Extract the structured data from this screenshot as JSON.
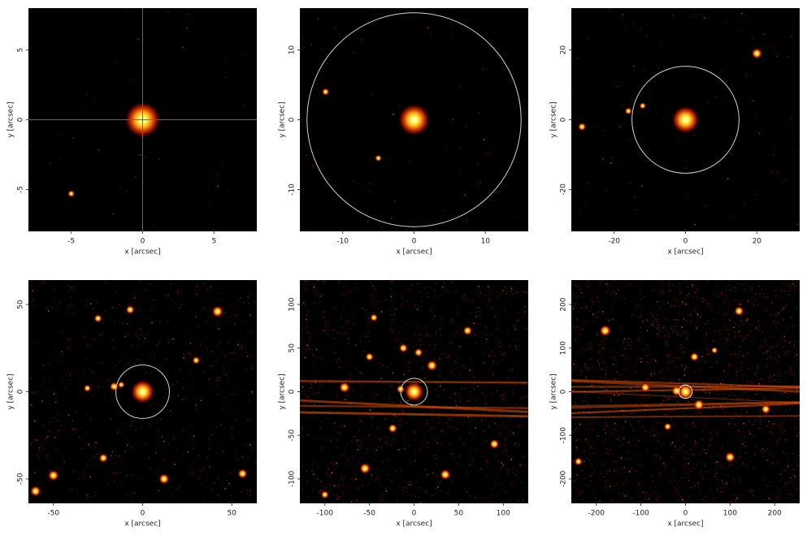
{
  "chart_data": [
    {
      "type": "image",
      "xlabel": "x [arcsec]",
      "ylabel": "y [arcsec]",
      "xlim": [
        -8,
        8
      ],
      "ylim": [
        -8,
        8
      ],
      "xticks": [
        -5,
        0,
        5
      ],
      "yticks": [
        -5,
        0,
        5
      ],
      "x": [
        0,
        -5
      ],
      "y": [
        0,
        -5.3
      ],
      "crosshair": true,
      "crosshair_color": "#2e8b2e"
    },
    {
      "type": "image",
      "xlabel": "x [arcsec]",
      "ylabel": "y [arcsec]",
      "xlim": [
        -16,
        16
      ],
      "ylim": [
        -16,
        16
      ],
      "xticks": [
        -10,
        0,
        10
      ],
      "yticks": [
        -10,
        0,
        10
      ],
      "x": [
        0,
        -12.4,
        -5
      ],
      "y": [
        0,
        4,
        -5.5
      ],
      "aperture_radius": 15,
      "aperture_color": "#d0d0d0"
    },
    {
      "type": "image",
      "xlabel": "x [arcsec]",
      "ylabel": "y [arcsec]",
      "xlim": [
        -32,
        32
      ],
      "ylim": [
        -32,
        32
      ],
      "xticks": [
        -20,
        0,
        20
      ],
      "yticks": [
        -20,
        0,
        20
      ],
      "x": [
        0,
        -16,
        -12,
        -29,
        20
      ],
      "y": [
        0,
        2.5,
        4,
        -2,
        19
      ],
      "aperture_radius": 15,
      "aperture_color": "#d0d0d0"
    },
    {
      "type": "image",
      "xlabel": "x [arcsec]",
      "ylabel": "y [arcsec]",
      "xlim": [
        -64,
        64
      ],
      "ylim": [
        -64,
        64
      ],
      "xticks": [
        -50,
        0,
        50
      ],
      "yticks": [
        -50,
        0,
        50
      ],
      "x": [
        0,
        -16,
        -12,
        -7,
        -22,
        56,
        30,
        -50,
        42,
        -31,
        -60,
        12,
        -25
      ],
      "y": [
        0,
        3,
        4,
        47,
        -38,
        -47,
        18,
        -48,
        46,
        2,
        -57,
        -50,
        42
      ],
      "aperture_radius": 15,
      "aperture_color": "#d0d0d0"
    },
    {
      "type": "image",
      "xlabel": "x [arcsec]",
      "ylabel": "y [arcsec]",
      "xlim": [
        -128,
        128
      ],
      "ylim": [
        -128,
        128
      ],
      "xticks": [
        -100,
        -50,
        0,
        50,
        100
      ],
      "yticks": [
        -100,
        -50,
        0,
        50,
        100
      ],
      "x": [
        0,
        -15,
        -45,
        -24,
        -50,
        -12,
        60,
        35,
        -100,
        90,
        -55,
        20,
        -78,
        5
      ],
      "y": [
        0,
        3,
        85,
        -42,
        40,
        50,
        70,
        -95,
        -118,
        -60,
        -88,
        30,
        5,
        45
      ],
      "aperture_radius": 15,
      "aperture_color": "#d0d0d0"
    },
    {
      "type": "image",
      "xlabel": "x [arcsec]",
      "ylabel": "y [arcsec]",
      "xlim": [
        -256,
        256
      ],
      "ylim": [
        -256,
        256
      ],
      "xticks": [
        -200,
        -100,
        0,
        100,
        200
      ],
      "yticks": [
        -200,
        -100,
        0,
        100,
        200
      ],
      "x": [
        0,
        -20,
        -180,
        65,
        120,
        -40,
        180,
        -240,
        20,
        -90,
        100,
        30
      ],
      "y": [
        0,
        2,
        140,
        95,
        185,
        -80,
        -40,
        -160,
        80,
        10,
        -150,
        -30
      ],
      "aperture_radius": 15,
      "aperture_color": "#ffffff"
    }
  ]
}
